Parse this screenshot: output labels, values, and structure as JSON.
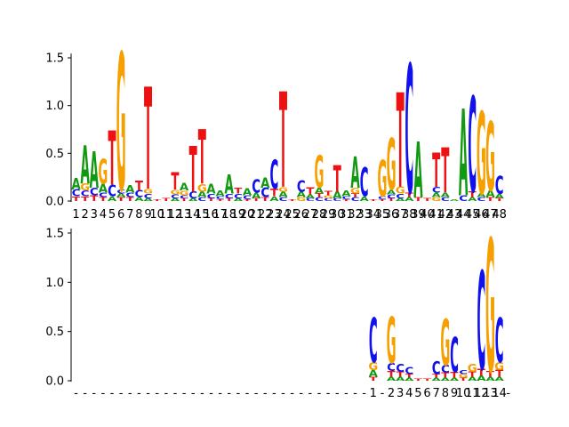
{
  "chart_data": [
    {
      "type": "sequence-logo",
      "name": "top-logo",
      "ylim": [
        0,
        1.6
      ],
      "yticks": [
        "0.0",
        "0.5",
        "1.0",
        "1.5"
      ],
      "xticks": [
        "1",
        "2",
        "3",
        "4",
        "5",
        "6",
        "7",
        "8",
        "9",
        "10",
        "11",
        "12",
        "13",
        "14",
        "15",
        "16",
        "17",
        "18",
        "19",
        "20",
        "21",
        "22",
        "23",
        "24",
        "25",
        "26",
        "27",
        "28",
        "29",
        "30",
        "31",
        "32",
        "33",
        "34",
        "35",
        "36",
        "37",
        "38",
        "39",
        "40",
        "41",
        "42",
        "43",
        "44",
        "45",
        "46",
        "47",
        "48"
      ],
      "letter_colors": {
        "A": "#119911",
        "C": "#1111ee",
        "G": "#f5a000",
        "T": "#ee1111"
      },
      "columns": [
        {
          "pos": "1",
          "stack": [
            [
              "T",
              0.05
            ],
            [
              "C",
              0.07
            ],
            [
              "A",
              0.12
            ]
          ]
        },
        {
          "pos": "2",
          "stack": [
            [
              "T",
              0.05
            ],
            [
              "C",
              0.06
            ],
            [
              "G",
              0.07
            ],
            [
              "A",
              0.4
            ]
          ]
        },
        {
          "pos": "3",
          "stack": [
            [
              "T",
              0.06
            ],
            [
              "C",
              0.08
            ],
            [
              "A",
              0.38
            ]
          ]
        },
        {
          "pos": "4",
          "stack": [
            [
              "T",
              0.04
            ],
            [
              "C",
              0.05
            ],
            [
              "A",
              0.09
            ],
            [
              "G",
              0.26
            ]
          ]
        },
        {
          "pos": "5",
          "stack": [
            [
              "A",
              0.05
            ],
            [
              "C",
              0.12
            ],
            [
              "T",
              0.57
            ]
          ]
        },
        {
          "pos": "6",
          "stack": [
            [
              "T",
              0.04
            ],
            [
              "A",
              0.04
            ],
            [
              "C",
              0.04
            ],
            [
              "G",
              1.44
            ]
          ]
        },
        {
          "pos": "7",
          "stack": [
            [
              "T",
              0.04
            ],
            [
              "C",
              0.05
            ],
            [
              "A",
              0.08
            ]
          ]
        },
        {
          "pos": "8",
          "stack": [
            [
              "A",
              0.04
            ],
            [
              "C",
              0.07
            ],
            [
              "T",
              0.1
            ]
          ]
        },
        {
          "pos": "9",
          "stack": [
            [
              "A",
              0.03
            ],
            [
              "C",
              0.05
            ],
            [
              "G",
              0.05
            ],
            [
              "T",
              1.07
            ]
          ]
        },
        {
          "pos": "10",
          "stack": [
            [
              "T",
              0.02
            ]
          ]
        },
        {
          "pos": "11",
          "stack": [
            [
              "T",
              0.03
            ]
          ]
        },
        {
          "pos": "12",
          "stack": [
            [
              "A",
              0.03
            ],
            [
              "C",
              0.04
            ],
            [
              "G",
              0.05
            ],
            [
              "T",
              0.18
            ]
          ]
        },
        {
          "pos": "13",
          "stack": [
            [
              "T",
              0.03
            ],
            [
              "C",
              0.03
            ],
            [
              "G",
              0.05
            ],
            [
              "A",
              0.08
            ]
          ]
        },
        {
          "pos": "14",
          "stack": [
            [
              "A",
              0.03
            ],
            [
              "C",
              0.07
            ],
            [
              "T",
              0.48
            ]
          ]
        },
        {
          "pos": "15",
          "stack": [
            [
              "C",
              0.04
            ],
            [
              "A",
              0.06
            ],
            [
              "G",
              0.08
            ],
            [
              "T",
              0.57
            ]
          ]
        },
        {
          "pos": "16",
          "stack": [
            [
              "T",
              0.03
            ],
            [
              "C",
              0.05
            ],
            [
              "A",
              0.1
            ]
          ]
        },
        {
          "pos": "17",
          "stack": [
            [
              "T",
              0.02
            ],
            [
              "C",
              0.03
            ],
            [
              "A",
              0.06
            ]
          ]
        },
        {
          "pos": "18",
          "stack": [
            [
              "T",
              0.03
            ],
            [
              "C",
              0.05
            ],
            [
              "A",
              0.2
            ]
          ]
        },
        {
          "pos": "19",
          "stack": [
            [
              "A",
              0.03
            ],
            [
              "C",
              0.05
            ],
            [
              "T",
              0.06
            ]
          ]
        },
        {
          "pos": "20",
          "stack": [
            [
              "T",
              0.02
            ],
            [
              "C",
              0.04
            ],
            [
              "A",
              0.07
            ]
          ]
        },
        {
          "pos": "21",
          "stack": [
            [
              "T",
              0.03
            ],
            [
              "A",
              0.06
            ],
            [
              "C",
              0.14
            ]
          ]
        },
        {
          "pos": "22",
          "stack": [
            [
              "T",
              0.04
            ],
            [
              "C",
              0.1
            ],
            [
              "A",
              0.11
            ]
          ]
        },
        {
          "pos": "23",
          "stack": [
            [
              "A",
              0.05
            ],
            [
              "T",
              0.08
            ],
            [
              "C",
              0.3
            ]
          ]
        },
        {
          "pos": "24",
          "stack": [
            [
              "C",
              0.04
            ],
            [
              "A",
              0.06
            ],
            [
              "G",
              0.05
            ],
            [
              "T",
              1.0
            ]
          ]
        },
        {
          "pos": "25",
          "stack": [
            [
              "T",
              0.02
            ]
          ]
        },
        {
          "pos": "26",
          "stack": [
            [
              "G",
              0.04
            ],
            [
              "A",
              0.06
            ],
            [
              "C",
              0.12
            ]
          ]
        },
        {
          "pos": "27",
          "stack": [
            [
              "C",
              0.03
            ],
            [
              "A",
              0.04
            ],
            [
              "T",
              0.07
            ]
          ]
        },
        {
          "pos": "28",
          "stack": [
            [
              "C",
              0.04
            ],
            [
              "T",
              0.04
            ],
            [
              "A",
              0.06
            ],
            [
              "G",
              0.34
            ]
          ]
        },
        {
          "pos": "29",
          "stack": [
            [
              "C",
              0.03
            ],
            [
              "G",
              0.03
            ],
            [
              "T",
              0.05
            ]
          ]
        },
        {
          "pos": "30",
          "stack": [
            [
              "C",
              0.03
            ],
            [
              "A",
              0.07
            ],
            [
              "T",
              0.28
            ]
          ]
        },
        {
          "pos": "31",
          "stack": [
            [
              "T",
              0.02
            ],
            [
              "C",
              0.03
            ],
            [
              "A",
              0.06
            ]
          ]
        },
        {
          "pos": "32",
          "stack": [
            [
              "C",
              0.04
            ],
            [
              "T",
              0.04
            ],
            [
              "G",
              0.06
            ],
            [
              "A",
              0.33
            ]
          ]
        },
        {
          "pos": "33",
          "stack": [
            [
              "A",
              0.05
            ],
            [
              "C",
              0.3
            ]
          ]
        },
        {
          "pos": "34",
          "stack": [
            [
              "T",
              0.02
            ]
          ]
        },
        {
          "pos": "35",
          "stack": [
            [
              "T",
              0.02
            ],
            [
              "C",
              0.03
            ],
            [
              "G",
              0.38
            ]
          ]
        },
        {
          "pos": "36",
          "stack": [
            [
              "T",
              0.03
            ],
            [
              "C",
              0.04
            ],
            [
              "A",
              0.05
            ],
            [
              "G",
              0.54
            ]
          ]
        },
        {
          "pos": "37",
          "stack": [
            [
              "A",
              0.03
            ],
            [
              "C",
              0.05
            ],
            [
              "G",
              0.07
            ],
            [
              "T",
              0.99
            ]
          ]
        },
        {
          "pos": "38",
          "stack": [
            [
              "A",
              0.04
            ],
            [
              "T",
              0.05
            ],
            [
              "C",
              1.35
            ]
          ]
        },
        {
          "pos": "39",
          "stack": [
            [
              "T",
              0.04
            ],
            [
              "A",
              0.58
            ]
          ]
        },
        {
          "pos": "40",
          "stack": [
            [
              "T",
              0.03
            ]
          ]
        },
        {
          "pos": "41",
          "stack": [
            [
              "G",
              0.04
            ],
            [
              "A",
              0.05
            ],
            [
              "C",
              0.06
            ],
            [
              "T",
              0.36
            ]
          ]
        },
        {
          "pos": "42",
          "stack": [
            [
              "C",
              0.04
            ],
            [
              "A",
              0.05
            ],
            [
              "T",
              0.47
            ]
          ]
        },
        {
          "pos": "43",
          "stack": [
            [
              "A",
              0.02
            ]
          ]
        },
        {
          "pos": "44",
          "stack": [
            [
              "C",
              0.06
            ],
            [
              "A",
              0.91
            ]
          ]
        },
        {
          "pos": "45",
          "stack": [
            [
              "A",
              0.04
            ],
            [
              "T",
              0.06
            ],
            [
              "C",
              1.0
            ]
          ]
        },
        {
          "pos": "46",
          "stack": [
            [
              "C",
              0.04
            ],
            [
              "A",
              0.04
            ],
            [
              "G",
              0.86
            ]
          ]
        },
        {
          "pos": "47",
          "stack": [
            [
              "T",
              0.04
            ],
            [
              "A",
              0.07
            ],
            [
              "G",
              0.72
            ]
          ]
        },
        {
          "pos": "48",
          "stack": [
            [
              "T",
              0.03
            ],
            [
              "A",
              0.05
            ],
            [
              "C",
              0.19
            ]
          ]
        }
      ]
    },
    {
      "type": "sequence-logo",
      "name": "bottom-logo",
      "ylim": [
        0,
        1.6
      ],
      "yticks": [
        "0.0",
        "0.5",
        "1.0",
        "1.5"
      ],
      "xticks": [
        "-",
        "-",
        "-",
        "-",
        "-",
        "-",
        "-",
        "-",
        "-",
        "-",
        "-",
        "-",
        "-",
        "-",
        "-",
        "-",
        "-",
        "-",
        "-",
        "-",
        "-",
        "-",
        "-",
        "-",
        "-",
        "-",
        "-",
        "-",
        "-",
        "-",
        "-",
        "-",
        "-",
        "1",
        "-",
        "2",
        "3",
        "4",
        "5",
        "6",
        "7",
        "8",
        "9",
        "10",
        "11",
        "12",
        "13",
        "14",
        "-"
      ],
      "letter_colors": {
        "A": "#119911",
        "C": "#1111ee",
        "G": "#f5a000",
        "T": "#ee1111"
      },
      "columns": [
        {
          "pos": "34",
          "stack": [
            [
              "T",
              0.04
            ],
            [
              "A",
              0.07
            ],
            [
              "G",
              0.08
            ],
            [
              "C",
              0.45
            ]
          ]
        },
        {
          "pos": "36",
          "stack": [
            [
              "A",
              0.04
            ],
            [
              "T",
              0.06
            ],
            [
              "C",
              0.08
            ],
            [
              "G",
              0.47
            ]
          ]
        },
        {
          "pos": "37",
          "stack": [
            [
              "A",
              0.04
            ],
            [
              "T",
              0.05
            ],
            [
              "C",
              0.08
            ]
          ]
        },
        {
          "pos": "38",
          "stack": [
            [
              "A",
              0.03
            ],
            [
              "T",
              0.04
            ],
            [
              "C",
              0.07
            ]
          ]
        },
        {
          "pos": "39",
          "stack": [
            [
              "T",
              0.02
            ]
          ]
        },
        {
          "pos": "40",
          "stack": [
            [
              "T",
              0.02
            ]
          ]
        },
        {
          "pos": "41",
          "stack": [
            [
              "A",
              0.03
            ],
            [
              "T",
              0.04
            ],
            [
              "C",
              0.13
            ]
          ]
        },
        {
          "pos": "42",
          "stack": [
            [
              "A",
              0.03
            ],
            [
              "T",
              0.05
            ],
            [
              "C",
              0.08
            ],
            [
              "G",
              0.47
            ]
          ]
        },
        {
          "pos": "43",
          "stack": [
            [
              "A",
              0.03
            ],
            [
              "T",
              0.06
            ],
            [
              "C",
              0.36
            ]
          ]
        },
        {
          "pos": "44",
          "stack": [
            [
              "T",
              0.03
            ],
            [
              "G",
              0.04
            ],
            [
              "C",
              0.04
            ]
          ]
        },
        {
          "pos": "45",
          "stack": [
            [
              "A",
              0.04
            ],
            [
              "T",
              0.05
            ],
            [
              "G",
              0.08
            ]
          ]
        },
        {
          "pos": "46",
          "stack": [
            [
              "A",
              0.05
            ],
            [
              "T",
              0.07
            ],
            [
              "C",
              1.0
            ]
          ]
        },
        {
          "pos": "47",
          "stack": [
            [
              "A",
              0.04
            ],
            [
              "T",
              0.06
            ],
            [
              "G",
              1.35
            ]
          ]
        },
        {
          "pos": "48",
          "stack": [
            [
              "A",
              0.04
            ],
            [
              "T",
              0.07
            ],
            [
              "G",
              0.08
            ],
            [
              "C",
              0.45
            ]
          ]
        }
      ]
    }
  ]
}
